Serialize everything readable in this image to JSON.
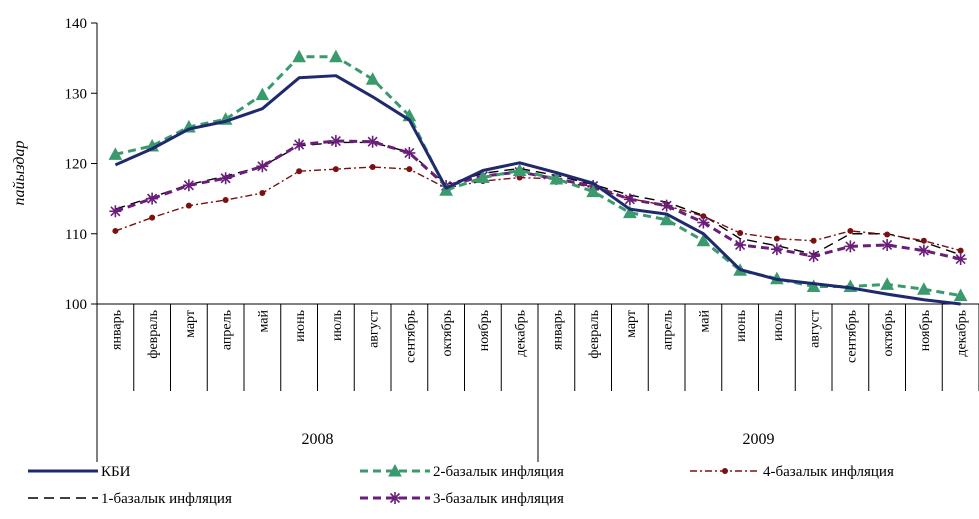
{
  "chart_data": {
    "type": "line",
    "ylabel": "пайыздар",
    "ylim": [
      100,
      140
    ],
    "yticks": [
      100,
      110,
      120,
      130,
      140
    ],
    "categories": [
      "январь",
      "февраль",
      "март",
      "апрель",
      "май",
      "июнь",
      "июль",
      "август",
      "сентябрь",
      "октябрь",
      "ноябрь",
      "декабрь",
      "январь",
      "февраль",
      "март",
      "апрель",
      "май",
      "июнь",
      "июль",
      "август",
      "сентябрь",
      "октябрь",
      "ноябрь",
      "декабрь"
    ],
    "years": [
      {
        "label": "2008",
        "start": 0,
        "count": 12
      },
      {
        "label": "2009",
        "start": 12,
        "count": 12
      }
    ],
    "legend_placement": "bottom",
    "series": [
      {
        "name": "КБИ",
        "color": "#1f2a6e",
        "dash": "solid",
        "marker": "none",
        "values": [
          119.8,
          122.1,
          124.9,
          126.0,
          127.8,
          132.2,
          132.5,
          129.5,
          126.2,
          116.5,
          119.0,
          120.1,
          118.7,
          117.2,
          113.5,
          112.8,
          110.0,
          104.9,
          103.5,
          102.9,
          102.3,
          101.4,
          100.6,
          100.0
        ]
      },
      {
        "name": "2-базалык инфляция",
        "color": "#3a9a6e",
        "dash": "dashed",
        "marker": "triangle",
        "values": [
          121.3,
          122.5,
          125.2,
          126.3,
          129.8,
          135.2,
          135.2,
          132.0,
          126.8,
          116.2,
          118.0,
          119.0,
          117.8,
          116.0,
          113.0,
          112.0,
          109.0,
          104.8,
          103.6,
          102.5,
          102.5,
          102.8,
          102.1,
          101.2
        ]
      },
      {
        "name": "4-базалык инфляция",
        "color": "#7a1010",
        "dash": "dashdot",
        "marker": "circle",
        "values": [
          110.4,
          112.3,
          114.0,
          114.8,
          115.8,
          118.9,
          119.2,
          119.5,
          119.2,
          116.5,
          117.5,
          118.0,
          117.8,
          116.5,
          115.0,
          114.0,
          112.5,
          110.1,
          109.3,
          109.0,
          110.4,
          109.9,
          109.0,
          107.6
        ]
      },
      {
        "name": "1-базалык инфляция",
        "color": "#000000",
        "dash": "longdash",
        "marker": "none",
        "values": [
          113.5,
          115.2,
          117.0,
          118.2,
          119.6,
          122.5,
          123.0,
          123.0,
          121.6,
          117.0,
          118.6,
          119.3,
          118.3,
          117.0,
          115.5,
          114.5,
          112.6,
          109.3,
          108.3,
          107.1,
          110.0,
          110.0,
          108.8,
          107.0
        ]
      },
      {
        "name": "3-базалык инфляция",
        "color": "#6a1e7a",
        "dash": "dashed",
        "marker": "star",
        "values": [
          113.2,
          115.0,
          116.9,
          117.9,
          119.6,
          122.7,
          123.2,
          123.1,
          121.5,
          116.8,
          118.2,
          118.8,
          117.8,
          116.8,
          114.9,
          114.0,
          111.6,
          108.4,
          107.8,
          106.8,
          108.2,
          108.4,
          107.6,
          106.4
        ]
      }
    ]
  }
}
